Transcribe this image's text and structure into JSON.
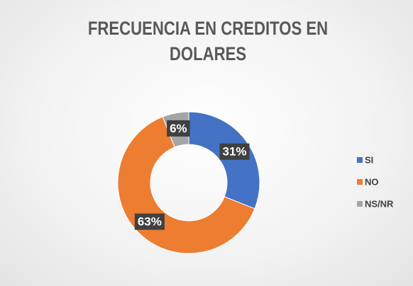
{
  "chart_data": {
    "type": "donut",
    "title": "FRECUENCIA EN CREDITOS EN DOLARES",
    "categories": [
      "SI",
      "NO",
      "NS/NR"
    ],
    "values": [
      31,
      63,
      6
    ],
    "value_labels": [
      "31%",
      "63%",
      "6%"
    ],
    "colors": [
      "#4472c4",
      "#ed7d31",
      "#a5a5a5"
    ],
    "legend": "right"
  }
}
